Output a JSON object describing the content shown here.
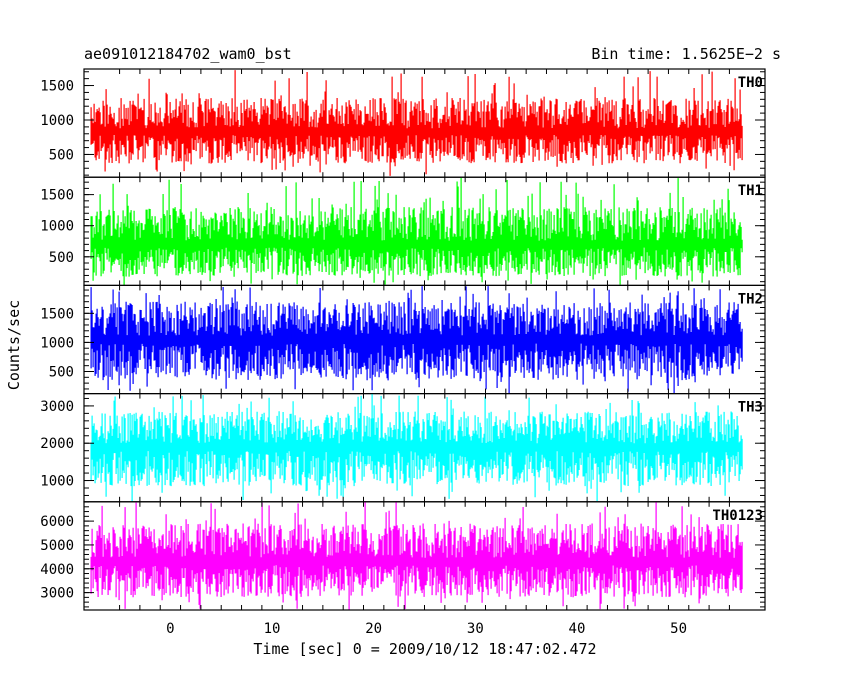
{
  "header": {
    "file_label": "ae091012184702_wam0_bst",
    "bin_time_label": "Bin time: 1.5625E−2 s"
  },
  "chart_data": {
    "type": "line",
    "xlabel": "Time [sec] 0 = 2009/10/12 18:47:02.472",
    "ylabel": "Counts/sec",
    "xlim": [
      -8.5,
      58.5
    ],
    "data_x_range": [
      -7.8,
      56.3
    ],
    "x_ticks": [
      0,
      10,
      20,
      30,
      40,
      50
    ],
    "x_tick_labels": [
      "0",
      "10",
      "20",
      "30",
      "40",
      "50"
    ],
    "bin_time_s": 0.015625,
    "series": [
      {
        "name": "TH0",
        "color": "#ff0000",
        "ylim": [
          170,
          1740
        ],
        "y_ticks": [
          500,
          1000,
          1500
        ],
        "y_tick_labels": [
          "500",
          "1000",
          "1500"
        ],
        "typical_range": [
          370,
          1320
        ],
        "peak_max": 1740,
        "trough_min": 170,
        "mean": 830
      },
      {
        "name": "TH1",
        "color": "#00ff00",
        "ylim": [
          40,
          1780
        ],
        "y_ticks": [
          500,
          1000,
          1500
        ],
        "y_tick_labels": [
          "500",
          "1000",
          "1500"
        ],
        "typical_range": [
          180,
          1300
        ],
        "peak_max": 1780,
        "trough_min": 40,
        "mean": 700
      },
      {
        "name": "TH2",
        "color": "#0000ff",
        "ylim": [
          120,
          1980
        ],
        "y_ticks": [
          500,
          1000,
          1500
        ],
        "y_tick_labels": [
          "500",
          "1000",
          "1500"
        ],
        "typical_range": [
          350,
          1700
        ],
        "peak_max": 1980,
        "trough_min": 120,
        "mean": 1050
      },
      {
        "name": "TH3",
        "color": "#00ffff",
        "ylim": [
          430,
          3330
        ],
        "y_ticks": [
          1000,
          2000,
          3000
        ],
        "y_tick_labels": [
          "1000",
          "2000",
          "3000"
        ],
        "typical_range": [
          850,
          2850
        ],
        "peak_max": 3330,
        "trough_min": 430,
        "mean": 1900
      },
      {
        "name": "TH0123",
        "color": "#ff00ff",
        "ylim": [
          2270,
          6810
        ],
        "y_ticks": [
          3000,
          4000,
          5000,
          6000
        ],
        "y_tick_labels": [
          "3000",
          "4000",
          "5000",
          "6000"
        ],
        "typical_range": [
          2800,
          5900
        ],
        "peak_max": 6810,
        "trough_min": 2270,
        "mean": 4300
      }
    ]
  }
}
